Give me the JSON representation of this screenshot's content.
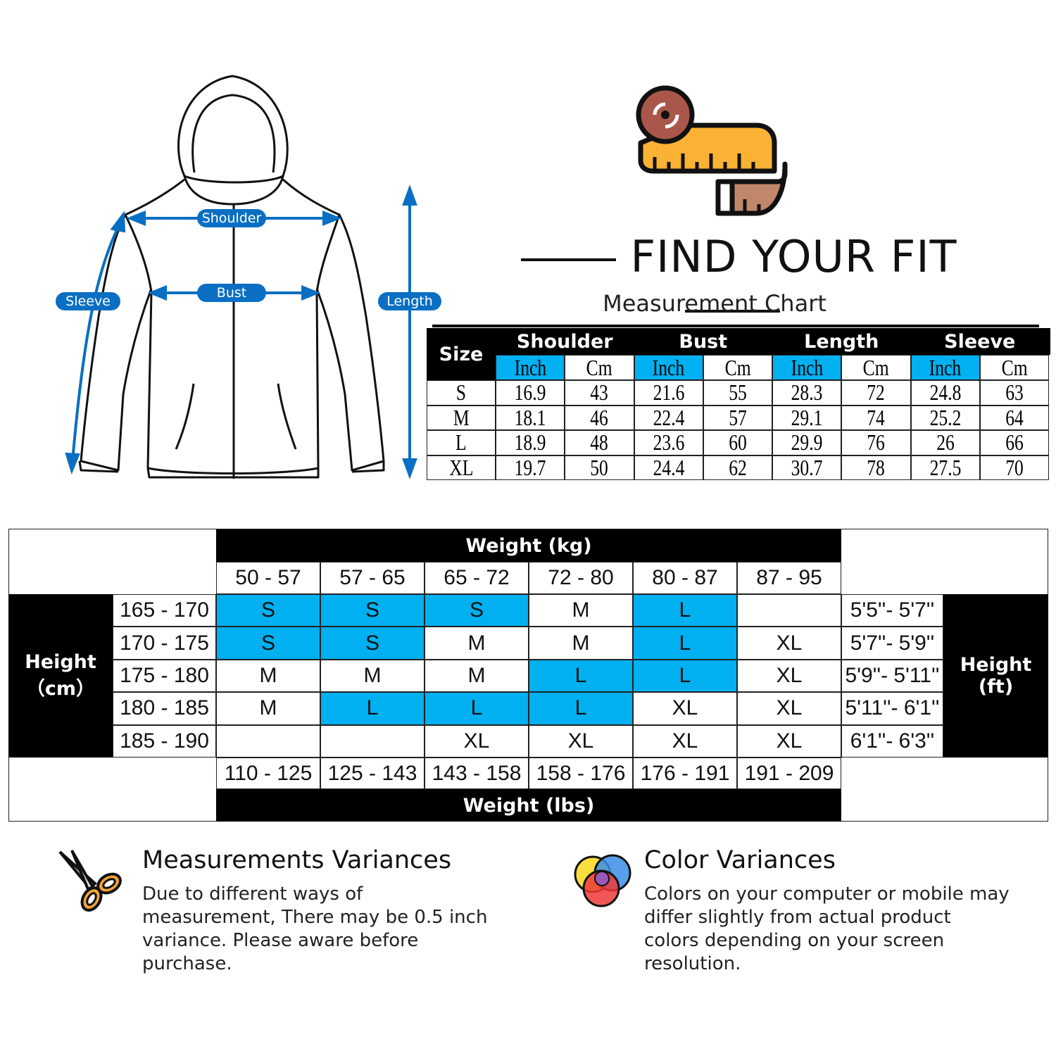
{
  "diagram": {
    "labels": {
      "shoulder": "Shoulder",
      "bust": "Bust",
      "sleeve": "Sleeve",
      "length": "Length"
    },
    "accent_color": "#0a6fc2"
  },
  "header": {
    "title": "FIND YOUR FIT",
    "subtitle": "Measurement Chart",
    "icon": "tape-measure-icon"
  },
  "size_table": {
    "size_label": "Size",
    "groups": [
      "Shoulder",
      "Bust",
      "Length",
      "Sleeve"
    ],
    "units": [
      "Inch",
      "Cm"
    ],
    "highlight_color": "#00b0f0",
    "rows": [
      {
        "size": "S",
        "values": [
          "16.9",
          "43",
          "21.6",
          "55",
          "28.3",
          "72",
          "24.8",
          "63"
        ]
      },
      {
        "size": "M",
        "values": [
          "18.1",
          "46",
          "22.4",
          "57",
          "29.1",
          "74",
          "25.2",
          "64"
        ]
      },
      {
        "size": "L",
        "values": [
          "18.9",
          "48",
          "23.6",
          "60",
          "29.9",
          "76",
          "26",
          "66"
        ]
      },
      {
        "size": "XL",
        "values": [
          "19.7",
          "50",
          "24.4",
          "62",
          "30.7",
          "78",
          "27.5",
          "70"
        ]
      }
    ]
  },
  "weight_grid": {
    "kg_title": "Weight (kg)",
    "lbs_title": "Weight (lbs)",
    "height_cm_label": [
      "Height",
      "（cm）"
    ],
    "height_ft_label": [
      "Height",
      "(ft)"
    ],
    "kg_ranges": [
      "50 - 57",
      "57 - 65",
      "65 - 72",
      "72 - 80",
      "80 - 87",
      "87 - 95"
    ],
    "lbs_ranges": [
      "110 - 125",
      "125 - 143",
      "143 - 158",
      "158 - 176",
      "176 - 191",
      "191 - 209"
    ],
    "highlight_color": "#00b0f0",
    "rows": [
      {
        "cm": "165 - 170",
        "ft": "5'5''- 5'7''",
        "sizes": [
          "S",
          "S",
          "S",
          "M",
          "L",
          ""
        ],
        "highlight": [
          true,
          true,
          true,
          false,
          true,
          false
        ]
      },
      {
        "cm": "170 - 175",
        "ft": "5'7''- 5'9''",
        "sizes": [
          "S",
          "S",
          "M",
          "M",
          "L",
          "XL"
        ],
        "highlight": [
          true,
          true,
          false,
          false,
          true,
          false
        ]
      },
      {
        "cm": "175 - 180",
        "ft": "5'9''- 5'11''",
        "sizes": [
          "M",
          "M",
          "M",
          "L",
          "L",
          "XL"
        ],
        "highlight": [
          false,
          false,
          false,
          true,
          true,
          false
        ]
      },
      {
        "cm": "180 - 185",
        "ft": "5'11''- 6'1''",
        "sizes": [
          "M",
          "L",
          "L",
          "L",
          "XL",
          "XL"
        ],
        "highlight": [
          false,
          true,
          true,
          true,
          false,
          false
        ]
      },
      {
        "cm": "185 - 190",
        "ft": "6'1''- 6'3''",
        "sizes": [
          "",
          "",
          "XL",
          "XL",
          "XL",
          "XL"
        ],
        "highlight": [
          false,
          false,
          false,
          false,
          false,
          false
        ]
      }
    ]
  },
  "notes": [
    {
      "title": "Measurements Variances",
      "text": "Due to different ways of measurement, There may be 0.5 inch variance. Please aware before purchase.",
      "icon": "scissors-icon"
    },
    {
      "title": "Color Variances",
      "text": "Colors on your computer or mobile may differ slightly from actual product colors depending on your screen resolution.",
      "icon": "color-circles-icon"
    }
  ]
}
